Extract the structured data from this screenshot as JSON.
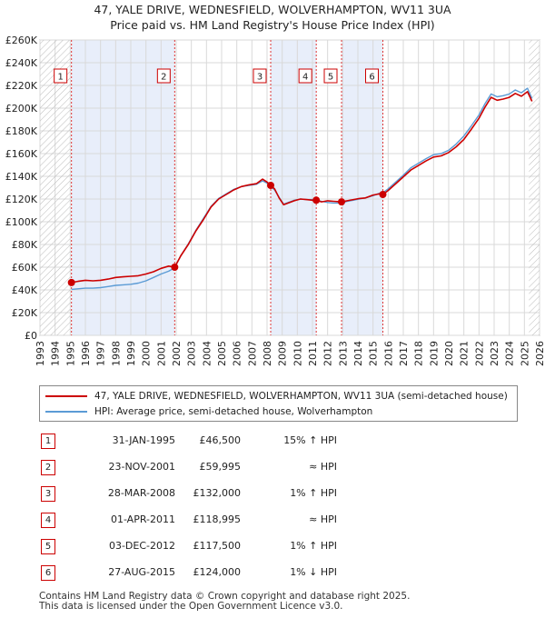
{
  "chart_data": {
    "type": "line",
    "title": "47, YALE DRIVE, WEDNESFIELD, WOLVERHAMPTON, WV11 3UA",
    "subtitle": "Price paid vs. HM Land Registry's House Price Index (HPI)",
    "xlim": [
      1993,
      2026
    ],
    "ylim": [
      0,
      260000
    ],
    "y_ticks": [
      {
        "value": 0,
        "label": "£0"
      },
      {
        "value": 20000,
        "label": "£20K"
      },
      {
        "value": 40000,
        "label": "£40K"
      },
      {
        "value": 60000,
        "label": "£60K"
      },
      {
        "value": 80000,
        "label": "£80K"
      },
      {
        "value": 100000,
        "label": "£100K"
      },
      {
        "value": 120000,
        "label": "£120K"
      },
      {
        "value": 140000,
        "label": "£140K"
      },
      {
        "value": 160000,
        "label": "£160K"
      },
      {
        "value": 180000,
        "label": "£180K"
      },
      {
        "value": 200000,
        "label": "£200K"
      },
      {
        "value": 220000,
        "label": "£220K"
      },
      {
        "value": 240000,
        "label": "£240K"
      },
      {
        "value": 260000,
        "label": "£260K"
      }
    ],
    "x_ticks": [
      "1993",
      "1994",
      "1995",
      "1996",
      "1997",
      "1998",
      "1999",
      "2000",
      "2001",
      "2002",
      "2003",
      "2004",
      "2005",
      "2006",
      "2007",
      "2008",
      "2009",
      "2010",
      "2011",
      "2012",
      "2013",
      "2014",
      "2015",
      "2016",
      "2017",
      "2018",
      "2019",
      "2020",
      "2021",
      "2022",
      "2023",
      "2024",
      "2025",
      "2026"
    ],
    "series": [
      {
        "name": "47, YALE DRIVE, WEDNESFIELD, WOLVERHAMPTON, WV11 3UA (semi-detached house)",
        "color": "#cc0000",
        "x": [
          1995.08,
          1995.5,
          1996,
          1996.5,
          1997,
          1997.5,
          1998,
          1998.5,
          1999,
          1999.5,
          2000,
          2000.5,
          2001,
          2001.5,
          2001.9,
          2002.3,
          2002.8,
          2003.3,
          2003.8,
          2004.3,
          2004.8,
          2005.3,
          2005.8,
          2006.3,
          2006.8,
          2007.3,
          2007.7,
          2008.0,
          2008.24,
          2008.5,
          2008.8,
          2009.1,
          2009.4,
          2009.8,
          2010.2,
          2010.6,
          2011.0,
          2011.25,
          2011.6,
          2012.0,
          2012.4,
          2012.92,
          2013.3,
          2013.7,
          2014.1,
          2014.5,
          2015.0,
          2015.4,
          2015.65,
          2016.0,
          2016.5,
          2017.0,
          2017.5,
          2018.0,
          2018.5,
          2019.0,
          2019.5,
          2020.0,
          2020.5,
          2021.0,
          2021.5,
          2022.0,
          2022.4,
          2022.8,
          2023.2,
          2023.6,
          2024.0,
          2024.4,
          2024.8,
          2025.2,
          2025.5
        ],
        "y": [
          46500,
          47500,
          48500,
          48000,
          48500,
          49500,
          51000,
          51500,
          52000,
          52500,
          54000,
          56000,
          59000,
          61000,
          59995,
          70000,
          80000,
          92000,
          102000,
          113000,
          120000,
          124000,
          128000,
          131000,
          132500,
          133500,
          137500,
          135000,
          132000,
          129000,
          121000,
          115000,
          116500,
          118500,
          120000,
          119500,
          119000,
          118995,
          117500,
          118500,
          118000,
          117500,
          118500,
          119500,
          120500,
          121000,
          123500,
          124500,
          124000,
          127500,
          133500,
          139500,
          145500,
          149500,
          153500,
          157000,
          158000,
          161000,
          166000,
          172500,
          181500,
          191000,
          201000,
          209500,
          207000,
          208000,
          209500,
          213000,
          210500,
          214500,
          206000
        ]
      },
      {
        "name": "HPI: Average price, semi-detached house, Wolverhampton",
        "color": "#5b9bd5",
        "x": [
          1995.08,
          1995.5,
          1996,
          1996.5,
          1997,
          1997.5,
          1998,
          1998.5,
          1999,
          1999.5,
          2000,
          2000.5,
          2001,
          2001.5,
          2001.9,
          2002.3,
          2002.8,
          2003.3,
          2003.8,
          2004.3,
          2004.8,
          2005.3,
          2005.8,
          2006.3,
          2006.8,
          2007.3,
          2007.7,
          2008.0,
          2008.24,
          2008.5,
          2008.8,
          2009.1,
          2009.4,
          2009.8,
          2010.2,
          2010.6,
          2011.0,
          2011.25,
          2011.6,
          2012.0,
          2012.4,
          2012.92,
          2013.3,
          2013.7,
          2014.1,
          2014.5,
          2015.0,
          2015.4,
          2015.65,
          2016.0,
          2016.5,
          2017.0,
          2017.5,
          2018.0,
          2018.5,
          2019.0,
          2019.5,
          2020.0,
          2020.5,
          2021.0,
          2021.5,
          2022.0,
          2022.4,
          2022.8,
          2023.2,
          2023.6,
          2024.0,
          2024.4,
          2024.8,
          2025.2,
          2025.5
        ],
        "y": [
          40500,
          41000,
          41500,
          41500,
          42000,
          43000,
          44000,
          44500,
          45000,
          46000,
          48000,
          51000,
          54000,
          56500,
          59500,
          70000,
          80500,
          92500,
          103000,
          113500,
          120500,
          124500,
          128500,
          131000,
          132000,
          133000,
          136000,
          134000,
          131000,
          128000,
          121500,
          115500,
          117000,
          119000,
          120000,
          119500,
          119500,
          119000,
          118000,
          117000,
          116500,
          116500,
          118000,
          119000,
          120000,
          121000,
          123000,
          125000,
          125500,
          129000,
          135000,
          141000,
          147500,
          151500,
          155500,
          159000,
          160000,
          163000,
          168500,
          175500,
          184500,
          194000,
          204000,
          212500,
          210000,
          211000,
          212500,
          216000,
          213500,
          217500,
          208500
        ]
      }
    ],
    "sales": [
      {
        "num": "1",
        "year": 1995.08,
        "price_value": 46500
      },
      {
        "num": "2",
        "year": 2001.9,
        "price_value": 59995
      },
      {
        "num": "3",
        "year": 2008.24,
        "price_value": 132000
      },
      {
        "num": "4",
        "year": 2011.25,
        "price_value": 118995
      },
      {
        "num": "5",
        "year": 2012.92,
        "price_value": 117500
      },
      {
        "num": "6",
        "year": 2015.65,
        "price_value": 124000
      }
    ]
  },
  "legend": {
    "property_label": "47, YALE DRIVE, WEDNESFIELD, WOLVERHAMPTON, WV11 3UA (semi-detached house)",
    "hpi_label": "HPI: Average price, semi-detached house, Wolverhampton"
  },
  "transactions": [
    {
      "num": "1",
      "date": "31-JAN-1995",
      "price": "£46,500",
      "hpi": "15% ↑ HPI"
    },
    {
      "num": "2",
      "date": "23-NOV-2001",
      "price": "£59,995",
      "hpi": "≈ HPI"
    },
    {
      "num": "3",
      "date": "28-MAR-2008",
      "price": "£132,000",
      "hpi": "1% ↑ HPI"
    },
    {
      "num": "4",
      "date": "01-APR-2011",
      "price": "£118,995",
      "hpi": "≈ HPI"
    },
    {
      "num": "5",
      "date": "03-DEC-2012",
      "price": "£117,500",
      "hpi": "1% ↑ HPI"
    },
    {
      "num": "6",
      "date": "27-AUG-2015",
      "price": "£124,000",
      "hpi": "1% ↓ HPI"
    }
  ],
  "footer": {
    "line1": "Contains HM Land Registry data © Crown copyright and database right 2025.",
    "line2": "This data is licensed under the Open Government Licence v3.0."
  },
  "colors": {
    "property": "#cc0000",
    "hpi": "#5b9bd5",
    "shade": "#e8eefa",
    "grid": "#d9d9d9"
  }
}
